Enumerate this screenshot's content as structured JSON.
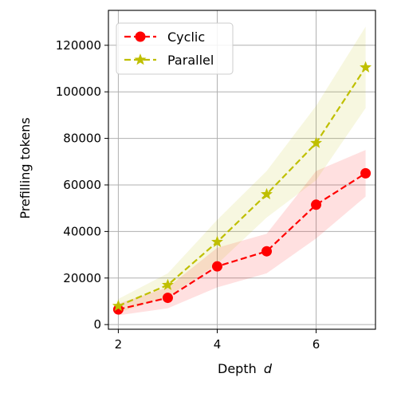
{
  "chart_data": {
    "type": "line",
    "x": [
      2,
      3,
      4,
      5,
      6,
      7
    ],
    "xlabel": "Depth",
    "xlabel_var": "d",
    "ylabel": "Prefilling tokens",
    "xlim": [
      1.8,
      7.2
    ],
    "ylim": [
      -2000,
      135000
    ],
    "xticks": [
      2,
      4,
      6
    ],
    "yticks": [
      0,
      20000,
      40000,
      60000,
      80000,
      100000,
      120000
    ],
    "grid": true,
    "legend_position": "top-left",
    "series": [
      {
        "name": "Cyclic",
        "color": "#ff0000",
        "marker": "circle",
        "linestyle": "dashed",
        "values": [
          6500,
          11500,
          25000,
          31500,
          51500,
          65000
        ],
        "band_low": [
          4000,
          7000,
          16000,
          22000,
          37000,
          55000
        ],
        "band_high": [
          9000,
          16000,
          33000,
          39000,
          66000,
          75000
        ]
      },
      {
        "name": "Parallel",
        "color": "#bfbf00",
        "marker": "star",
        "linestyle": "dashed",
        "values": [
          8000,
          17000,
          35500,
          56000,
          78000,
          110500
        ],
        "band_low": [
          5000,
          12000,
          26000,
          46000,
          62000,
          93000
        ],
        "band_high": [
          11000,
          22000,
          45000,
          66000,
          94000,
          128000
        ]
      }
    ]
  }
}
